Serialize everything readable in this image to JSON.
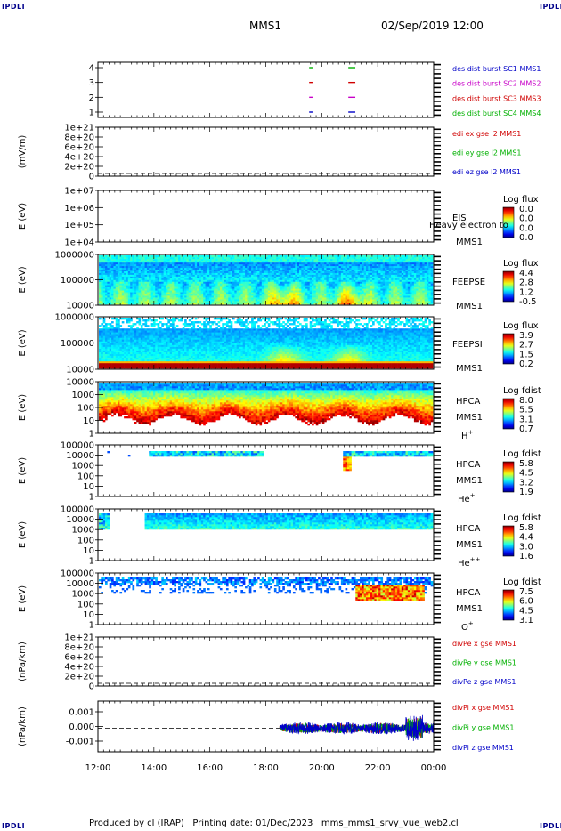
{
  "header": {
    "title": "MMS1",
    "datetime": "02/Sep/2019 12:00",
    "corner_label": "IPDLI"
  },
  "footer": {
    "produced_by": "Produced by cl (IRAP)",
    "printing_date": "Printing date: 01/Dec/2023",
    "script_name": "mms_mms1_srvy_vue_web2.cl"
  },
  "chart_data": {
    "type": "heatmap",
    "x_axis": {
      "ticks": [
        "12:00",
        "14:00",
        "16:00",
        "18:00",
        "20:00",
        "22:00",
        "00:00"
      ],
      "range_hours": [
        12,
        24
      ]
    },
    "panels": [
      {
        "id": "burst",
        "kind": "burst",
        "ylabel": "",
        "y_ticks": [
          "1",
          "2",
          "3",
          "4"
        ],
        "legend": [
          {
            "text": "des dist burst SC1 MMS1",
            "color": "#0000c8"
          },
          {
            "text": "des dist burst SC2 MMS2",
            "color": "#c800c8"
          },
          {
            "text": "des dist burst SC3 MMS3",
            "color": "#d00000"
          },
          {
            "text": "des dist burst SC4 MMS4",
            "color": "#00b000"
          }
        ],
        "bursts": [
          {
            "start": 19.55,
            "end": 19.67
          },
          {
            "start": 20.95,
            "end": 21.2
          }
        ]
      },
      {
        "id": "edi",
        "kind": "line",
        "ylabel": "(mV/m)",
        "y_ticks": [
          "0",
          "2e+20",
          "4e+20",
          "6e+20",
          "8e+20",
          "1e+21"
        ],
        "legend": [
          {
            "text": "edi ex gse l2 MMS1",
            "color": "#d00000"
          },
          {
            "text": "edi ey gse l2 MMS1",
            "color": "#00b000"
          },
          {
            "text": "edi ez gse l2 MMS1",
            "color": "#0000c8"
          }
        ],
        "dashed_zero": true
      },
      {
        "id": "eis",
        "kind": "empty_spec",
        "ylabel": "E (eV)",
        "y_ticks": [
          "1e+04",
          "1e+05",
          "1e+06",
          "1e+07"
        ],
        "labels": [
          "EIS",
          "MMS1"
        ],
        "overlay_label": "Heavy electron to",
        "colorbar": {
          "title": "Log flux",
          "ticks": [
            "0.0",
            "0.0",
            "0.0",
            "0.0"
          ]
        }
      },
      {
        "id": "feepse",
        "kind": "spectrogram",
        "variant": "feeps_e",
        "ylabel": "E (eV)",
        "y_ticks": [
          "10000",
          "100000",
          "1000000"
        ],
        "labels": [
          "FEEPSE",
          "MMS1"
        ],
        "colorbar": {
          "title": "Log flux",
          "ticks": [
            "4.4",
            "2.8",
            "1.2",
            "-0.5"
          ]
        }
      },
      {
        "id": "feepsi",
        "kind": "spectrogram",
        "variant": "feeps_i",
        "ylabel": "E (eV)",
        "y_ticks": [
          "10000",
          "100000",
          "1000000"
        ],
        "labels": [
          "FEEPSI",
          "MMS1"
        ],
        "colorbar": {
          "title": "Log flux",
          "ticks": [
            "3.9",
            "2.7",
            "1.5",
            "0.2"
          ]
        }
      },
      {
        "id": "hpca_h",
        "kind": "spectrogram",
        "variant": "hpca_h",
        "ylabel": "E (eV)",
        "y_ticks": [
          "1",
          "10",
          "100",
          "1000",
          "10000"
        ],
        "labels": [
          "HPCA",
          "MMS1"
        ],
        "species": "H",
        "species_sup": "+",
        "colorbar": {
          "title": "Log fdist",
          "ticks": [
            "8.0",
            "5.5",
            "3.1",
            "0.7"
          ]
        }
      },
      {
        "id": "hpca_he",
        "kind": "spectrogram",
        "variant": "hpca_he",
        "ylabel": "E (eV)",
        "y_ticks": [
          "1",
          "10",
          "100",
          "1000",
          "10000",
          "100000"
        ],
        "labels": [
          "HPCA",
          "MMS1"
        ],
        "species": "He",
        "species_sup": "+",
        "colorbar": {
          "title": "Log fdist",
          "ticks": [
            "5.8",
            "4.5",
            "3.2",
            "1.9"
          ]
        }
      },
      {
        "id": "hpca_hepp",
        "kind": "spectrogram",
        "variant": "hpca_hepp",
        "ylabel": "E (eV)",
        "y_ticks": [
          "1",
          "10",
          "100",
          "1000",
          "10000",
          "100000"
        ],
        "labels": [
          "HPCA",
          "MMS1"
        ],
        "species": "He",
        "species_sup": "++",
        "colorbar": {
          "title": "Log fdist",
          "ticks": [
            "5.8",
            "4.4",
            "3.0",
            "1.6"
          ]
        }
      },
      {
        "id": "hpca_o",
        "kind": "spectrogram",
        "variant": "hpca_o",
        "ylabel": "E (eV)",
        "y_ticks": [
          "1",
          "10",
          "100",
          "1000",
          "10000",
          "100000"
        ],
        "labels": [
          "HPCA",
          "MMS1"
        ],
        "species": "O",
        "species_sup": "+",
        "colorbar": {
          "title": "Log fdist",
          "ticks": [
            "7.5",
            "6.0",
            "4.5",
            "3.1"
          ]
        }
      },
      {
        "id": "divpe",
        "kind": "line",
        "ylabel": "(nPa/km)",
        "y_ticks": [
          "0",
          "2e+20",
          "4e+20",
          "6e+20",
          "8e+20",
          "1e+21"
        ],
        "legend": [
          {
            "text": "divPe x gse MMS1",
            "color": "#d00000"
          },
          {
            "text": "divPe y gse MMS1",
            "color": "#00b000"
          },
          {
            "text": "divPe z gse MMS1",
            "color": "#0000c8"
          }
        ],
        "dashed_zero": true
      },
      {
        "id": "divpi",
        "kind": "noise",
        "ylabel": "(nPa/km)",
        "y_ticks": [
          "-0.001",
          "0.000",
          "0.001"
        ],
        "legend": [
          {
            "text": "divPi x gse MMS1",
            "color": "#d00000"
          },
          {
            "text": "divPi y gse MMS1",
            "color": "#00b000"
          },
          {
            "text": "divPi z gse MMS1",
            "color": "#0000c8"
          }
        ],
        "data_start_hour": 18.5,
        "dashed_zero": true
      }
    ]
  }
}
